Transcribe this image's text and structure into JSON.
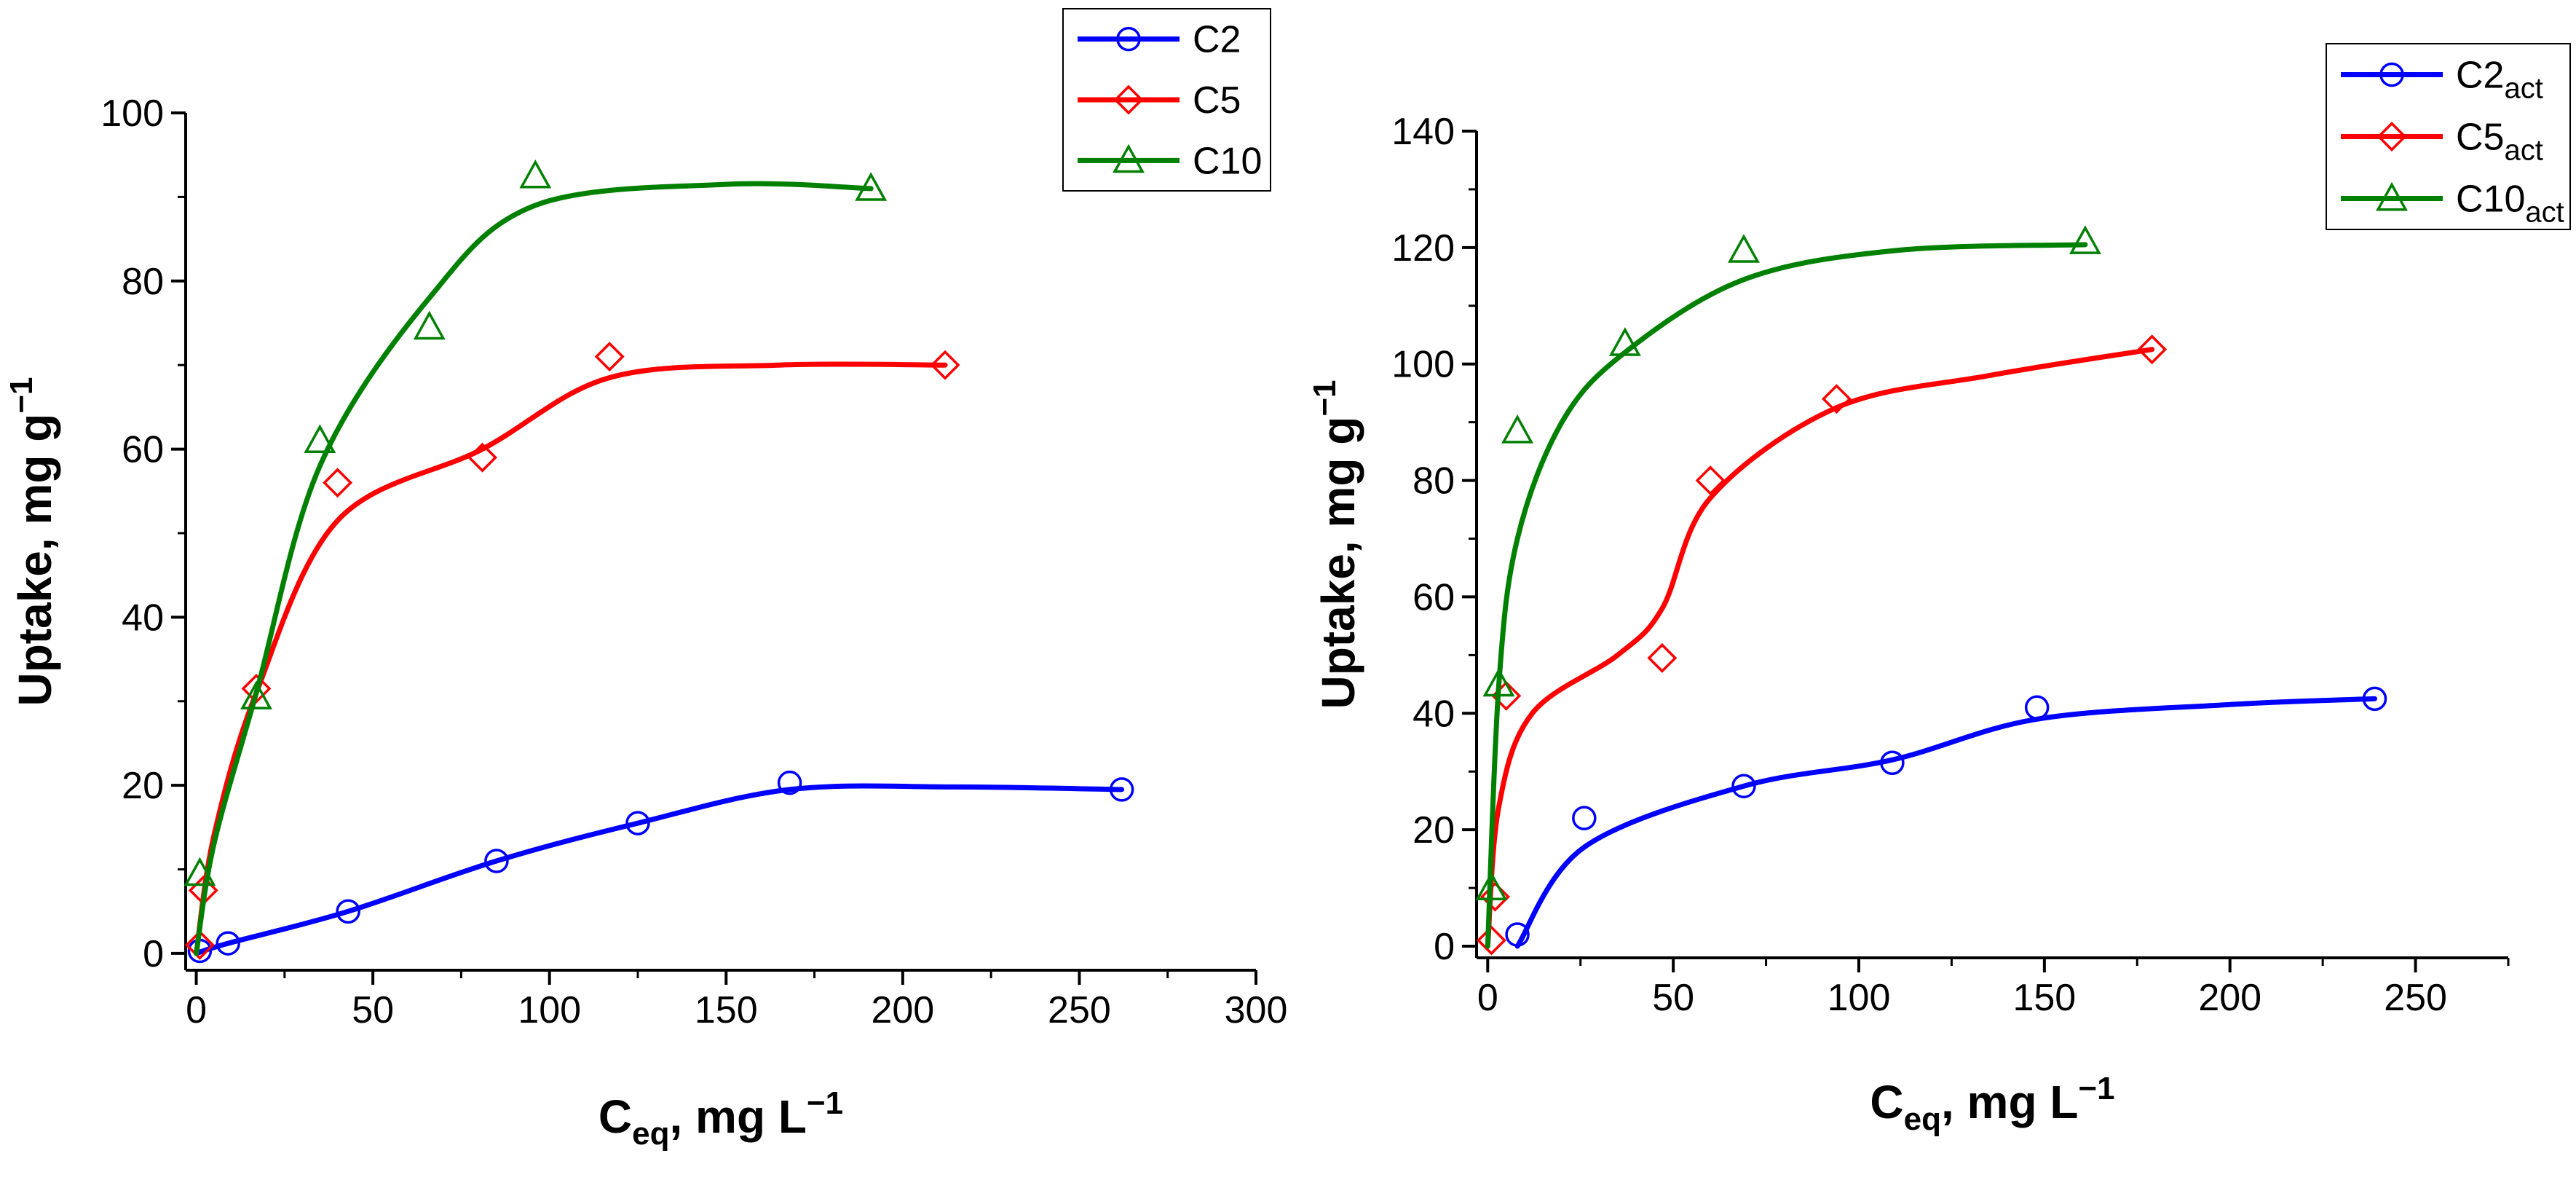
{
  "chart_data": [
    {
      "type": "line",
      "title": "",
      "xlabel": "C_eq, mg L^−1",
      "xlabel_parts": {
        "main": "C",
        "sub": "eq",
        "rest": ", mg L",
        "sup": "−1"
      },
      "ylabel": "Uptake, mg g^−1",
      "ylabel_parts": {
        "main": "Uptake, mg g",
        "sup": "−1"
      },
      "xlim": [
        -3,
        300
      ],
      "ylim": [
        -2,
        100
      ],
      "xticks": [
        0,
        50,
        100,
        150,
        200,
        250,
        300
      ],
      "yticks": [
        0,
        20,
        40,
        60,
        80,
        100
      ],
      "grid": false,
      "legend_position": "top-right",
      "series": [
        {
          "name": "C2",
          "sub": "",
          "color": "#0000ff",
          "marker": "circle",
          "points": [
            [
              1,
              0.3
            ],
            [
              9,
              1.2
            ],
            [
              43,
              5
            ],
            [
              85,
              11
            ],
            [
              125,
              15.5
            ],
            [
              168,
              20.3
            ],
            [
              262,
              19.5
            ]
          ],
          "fit": [
            [
              0,
              0
            ],
            [
              9,
              1.2
            ],
            [
              43,
              5
            ],
            [
              85,
              11
            ],
            [
              125,
              15.5
            ],
            [
              168,
              19.5
            ],
            [
              215,
              19.8
            ],
            [
              262,
              19.5
            ]
          ]
        },
        {
          "name": "C5",
          "sub": "",
          "color": "#ff0000",
          "marker": "diamond",
          "points": [
            [
              1,
              1
            ],
            [
              2,
              7.5
            ],
            [
              17,
              31.5
            ],
            [
              40,
              56
            ],
            [
              81,
              59
            ],
            [
              117,
              71
            ],
            [
              212,
              70
            ]
          ],
          "fit": [
            [
              0,
              0
            ],
            [
              5,
              14
            ],
            [
              17,
              31
            ],
            [
              40,
              51.5
            ],
            [
              81,
              60
            ],
            [
              117,
              68.5
            ],
            [
              165,
              70
            ],
            [
              212,
              70
            ]
          ]
        },
        {
          "name": "C10",
          "sub": "",
          "color": "#008000",
          "marker": "triangle",
          "points": [
            [
              1,
              9.5
            ],
            [
              17,
              30.5
            ],
            [
              35,
              61
            ],
            [
              66,
              74.5
            ],
            [
              96,
              92.5
            ],
            [
              191,
              91
            ]
          ],
          "fit": [
            [
              0,
              0
            ],
            [
              5,
              13
            ],
            [
              17,
              31
            ],
            [
              35,
              58
            ],
            [
              66,
              78
            ],
            [
              96,
              89
            ],
            [
              150,
              91.5
            ],
            [
              191,
              91
            ]
          ]
        }
      ]
    },
    {
      "type": "line",
      "title": "",
      "xlabel": "C_eq, mg L^−1",
      "xlabel_parts": {
        "main": "C",
        "sub": "eq",
        "rest": ", mg L",
        "sup": "−1"
      },
      "ylabel": "Uptake, mg g^−1",
      "ylabel_parts": {
        "main": "Uptake, mg g",
        "sup": "−1"
      },
      "xlim": [
        -3,
        275
      ],
      "ylim": [
        -2,
        140
      ],
      "xticks": [
        0,
        50,
        100,
        150,
        200,
        250
      ],
      "yticks": [
        0,
        20,
        40,
        60,
        80,
        100,
        120,
        140
      ],
      "grid": false,
      "legend_position": "top-right",
      "series": [
        {
          "name": "C2",
          "sub": "act",
          "color": "#0000ff",
          "marker": "circle",
          "points": [
            [
              8,
              2
            ],
            [
              26,
              22
            ],
            [
              69,
              27.5
            ],
            [
              109,
              31.5
            ],
            [
              148,
              41
            ],
            [
              239,
              42.5
            ]
          ],
          "fit": [
            [
              8,
              0
            ],
            [
              26,
              17
            ],
            [
              69,
              27.5
            ],
            [
              109,
              32
            ],
            [
              148,
              39
            ],
            [
              200,
              41.5
            ],
            [
              239,
              42.5
            ]
          ]
        },
        {
          "name": "C5",
          "sub": "act",
          "color": "#ff0000",
          "marker": "diamond",
          "points": [
            [
              1,
              1
            ],
            [
              2,
              8.5
            ],
            [
              5,
              43
            ],
            [
              47,
              49.5
            ],
            [
              60,
              80
            ],
            [
              94,
              94
            ],
            [
              179,
              102.5
            ]
          ],
          "fit": [
            [
              0,
              0
            ],
            [
              3,
              24
            ],
            [
              12,
              40
            ],
            [
              35,
              50
            ],
            [
              47,
              58
            ],
            [
              60,
              77
            ],
            [
              94,
              92.5
            ],
            [
              135,
              98
            ],
            [
              179,
              102.5
            ]
          ]
        },
        {
          "name": "C10",
          "sub": "act",
          "color": "#008000",
          "marker": "triangle",
          "points": [
            [
              1,
              10
            ],
            [
              3,
              45
            ],
            [
              8,
              88.5
            ],
            [
              37,
              103.5
            ],
            [
              69,
              119.5
            ],
            [
              161,
              121
            ]
          ],
          "fit": [
            [
              0,
              0
            ],
            [
              3,
              45
            ],
            [
              8,
              70
            ],
            [
              20,
              90
            ],
            [
              37,
              102
            ],
            [
              69,
              114.5
            ],
            [
              110,
              119.5
            ],
            [
              161,
              120.5
            ]
          ]
        }
      ]
    }
  ]
}
